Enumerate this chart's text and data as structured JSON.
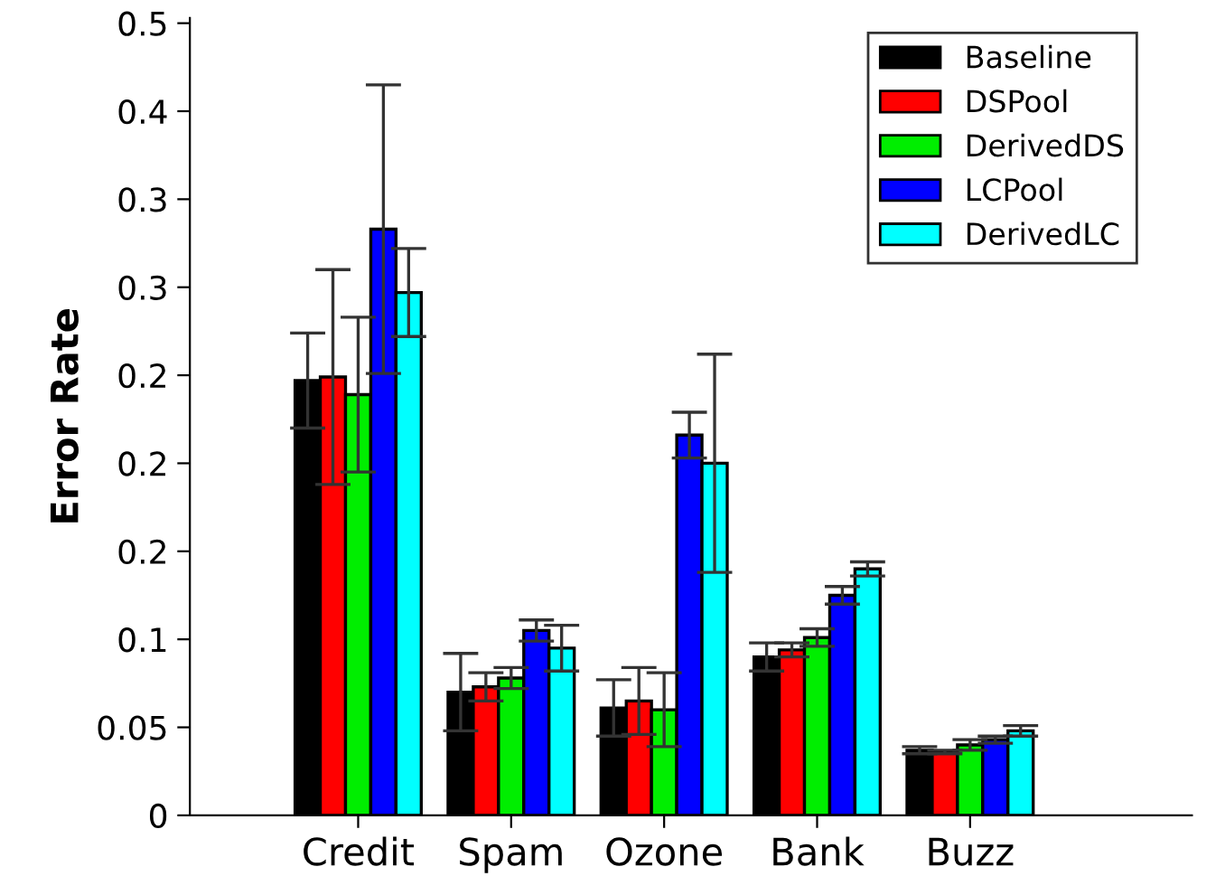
{
  "chart_data": {
    "type": "bar",
    "ylabel": "Error Rate",
    "categories": [
      "Credit",
      "Spam",
      "Ozone",
      "Bank",
      "Buzz"
    ],
    "series": [
      {
        "name": "Baseline",
        "color": "#000000",
        "values": [
          0.247,
          0.07,
          0.061,
          0.09,
          0.037
        ],
        "errors": [
          0.027,
          0.022,
          0.016,
          0.008,
          0.002
        ]
      },
      {
        "name": "DSPool",
        "color": "#ff0000",
        "values": [
          0.249,
          0.073,
          0.065,
          0.094,
          0.036
        ],
        "errors": [
          0.061,
          0.008,
          0.019,
          0.004,
          0.001
        ]
      },
      {
        "name": "DerivedDS",
        "color": "#00ee00",
        "values": [
          0.239,
          0.078,
          0.06,
          0.101,
          0.04
        ],
        "errors": [
          0.044,
          0.006,
          0.021,
          0.005,
          0.003
        ]
      },
      {
        "name": "LCPool",
        "color": "#0000ff",
        "values": [
          0.333,
          0.105,
          0.216,
          0.125,
          0.043
        ],
        "errors": [
          0.082,
          0.006,
          0.013,
          0.005,
          0.002
        ]
      },
      {
        "name": "DerivedLC",
        "color": "#00ffff",
        "values": [
          0.297,
          0.095,
          0.2,
          0.14,
          0.048
        ],
        "errors": [
          0.025,
          0.013,
          0.062,
          0.004,
          0.003
        ]
      }
    ],
    "ylim": [
      0,
      0.453
    ],
    "yticks": [
      0,
      0.05,
      0.1,
      {
        "value": 0.15,
        "label": "0.2"
      },
      {
        "value": 0.2,
        "label": "0.2"
      },
      {
        "value": 0.25,
        "label": "0.2"
      },
      {
        "value": 0.3,
        "label": "0.3"
      },
      {
        "value": 0.35,
        "label": "0.3"
      },
      {
        "value": 0.4,
        "label": "0.4"
      },
      {
        "value": 0.45,
        "label": "0.5"
      }
    ],
    "grid": false,
    "legend": "top right"
  }
}
